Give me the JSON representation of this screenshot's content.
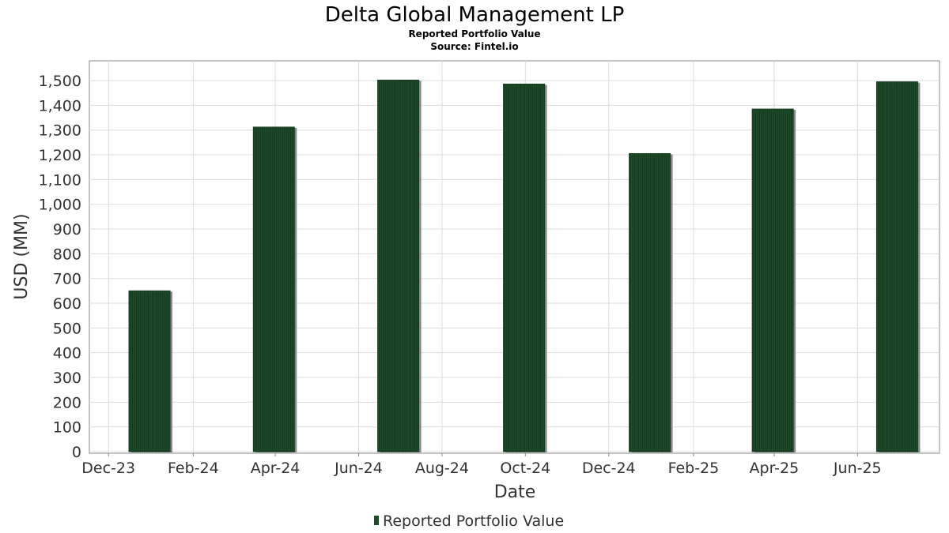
{
  "chart_data": {
    "type": "bar",
    "title": "Delta Global Management LP",
    "subtitle_lines": [
      "Reported Portfolio Value",
      "Source: Fintel.io"
    ],
    "xlabel": "Date",
    "ylabel": "USD (MM)",
    "ylim": [
      0,
      1580
    ],
    "y_ticks": [
      0,
      100,
      200,
      300,
      400,
      500,
      600,
      700,
      800,
      900,
      1000,
      1100,
      1200,
      1300,
      1400,
      1500
    ],
    "x_ticks": [
      "Dec-23",
      "Feb-24",
      "Apr-24",
      "Jun-24",
      "Aug-24",
      "Oct-24",
      "Dec-24",
      "Feb-25",
      "Apr-25",
      "Jun-25"
    ],
    "x_range": [
      "2023-11-17",
      "2025-07-31"
    ],
    "series": [
      {
        "name": "Reported Portfolio Value",
        "color": "#1e4a2a",
        "points": [
          {
            "date": "2023-12-31",
            "value": 650
          },
          {
            "date": "2024-03-31",
            "value": 1312
          },
          {
            "date": "2024-06-30",
            "value": 1502
          },
          {
            "date": "2024-09-30",
            "value": 1486
          },
          {
            "date": "2024-12-31",
            "value": 1205
          },
          {
            "date": "2025-03-31",
            "value": 1385
          },
          {
            "date": "2025-06-30",
            "value": 1495
          }
        ]
      }
    ],
    "grid": true,
    "legend_position": "bottom-center"
  }
}
